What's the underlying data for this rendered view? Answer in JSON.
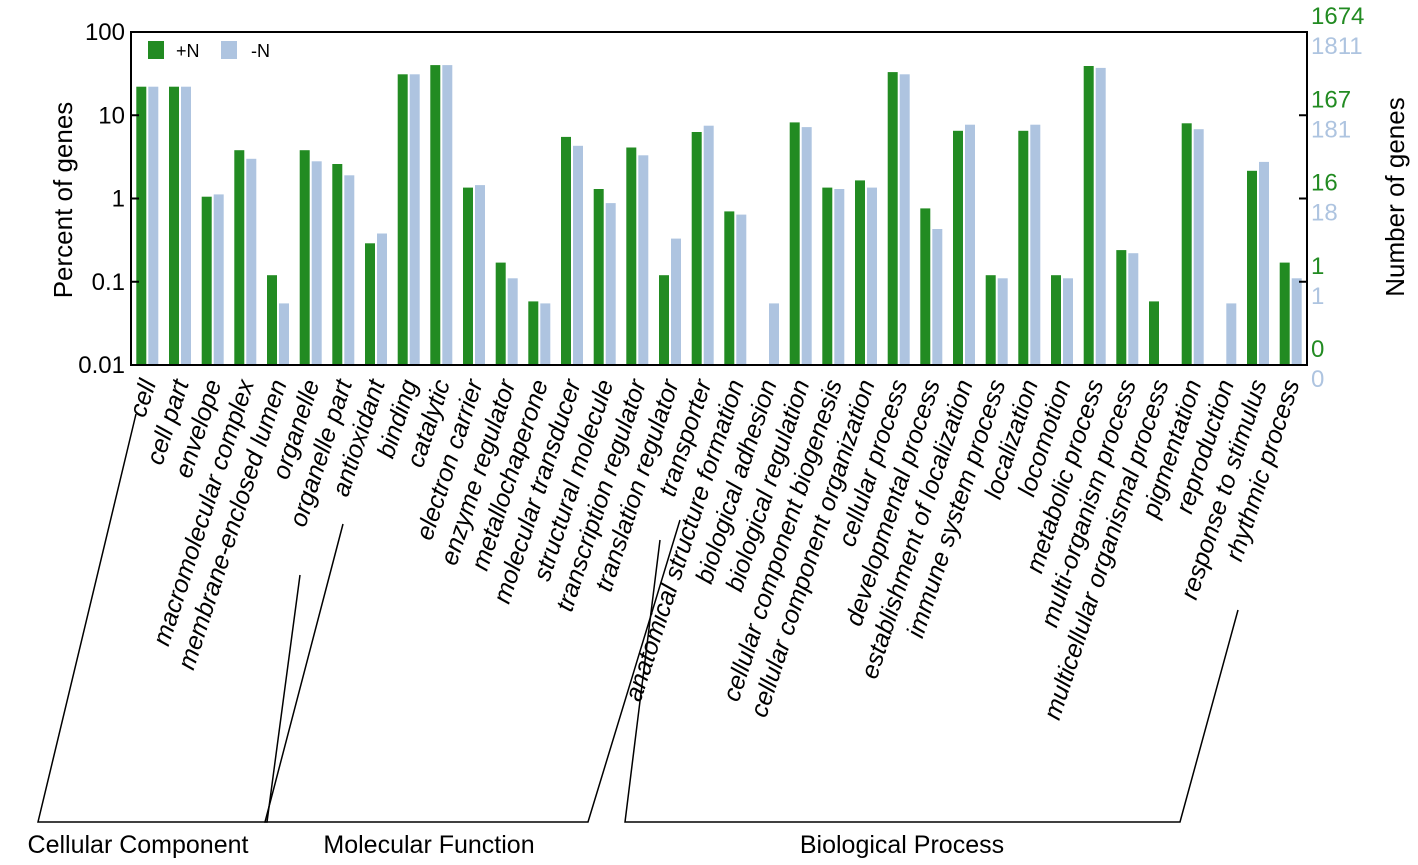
{
  "chart_data": {
    "type": "bar",
    "yscale": "log",
    "ylabel": "Percent of genes",
    "y2label": "Number of genes",
    "ylim": [
      0.01,
      100
    ],
    "yticks": [
      "100",
      "10",
      "1",
      "0.1",
      "0.01"
    ],
    "categories": [
      "cell",
      "cell part",
      "envelope",
      "macromolecular complex",
      "membrane-enclosed lumen",
      "organelle",
      "organelle part",
      "antioxidant",
      "binding",
      "catalytic",
      "electron carrier",
      "enzyme regulator",
      "metallochaperone",
      "molecular transducer",
      "structural molecule",
      "transcription regulator",
      "translation regulator",
      "transporter",
      "anatomical structure formation",
      "biological adhesion",
      "biological regulation",
      "cellular component biogenesis",
      "cellular component organization",
      "cellular process",
      "developmental process",
      "establishment of localization",
      "immune system process",
      "localization",
      "locomotion",
      "metabolic process",
      "multi-organism process",
      "multicellular organismal process",
      "pigmentation",
      "reproduction",
      "response to stimulus",
      "rhythmic process"
    ],
    "series": [
      {
        "name": "+N",
        "color": "#228b22",
        "values": [
          22,
          22,
          1.05,
          3.8,
          0.12,
          3.8,
          2.6,
          0.29,
          31,
          40,
          1.35,
          0.17,
          0.058,
          5.5,
          1.3,
          4.1,
          0.12,
          6.3,
          0.7,
          null,
          8.2,
          1.35,
          1.65,
          33,
          0.76,
          6.5,
          0.12,
          6.5,
          0.12,
          39,
          0.24,
          0.058,
          8,
          null,
          2.15,
          0.17
        ]
      },
      {
        "name": "-N",
        "color": "#aec4e0",
        "values": [
          22,
          22,
          1.12,
          3.0,
          0.055,
          2.8,
          1.9,
          0.38,
          31,
          40,
          1.45,
          0.11,
          0.055,
          4.3,
          0.88,
          3.3,
          0.33,
          7.5,
          0.64,
          0.055,
          7.2,
          1.3,
          1.35,
          31,
          0.43,
          7.7,
          0.11,
          7.7,
          0.11,
          37,
          0.22,
          null,
          6.8,
          0.055,
          2.75,
          0.11
        ]
      }
    ],
    "y2_ticks_plus": [
      "1674",
      "167",
      "16",
      "1",
      "0"
    ],
    "y2_ticks_minus": [
      "1811",
      "181",
      "18",
      "1",
      "0"
    ],
    "groups": [
      {
        "label": "Cellular Component",
        "from": 0,
        "to": 6
      },
      {
        "label": "Molecular Function",
        "from": 7,
        "to": 16
      },
      {
        "label": "Biological Process",
        "from": 17,
        "to": 35
      }
    ]
  }
}
